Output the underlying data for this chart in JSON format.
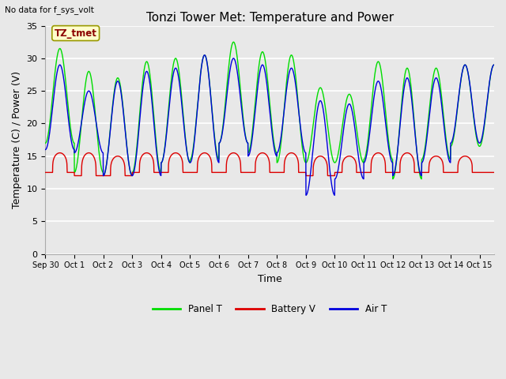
{
  "title": "Tonzi Tower Met: Temperature and Power",
  "top_left_text": "No data for f_sys_volt",
  "annotation_text": "TZ_tmet",
  "xlabel": "Time",
  "ylabel": "Temperature (C) / Power (V)",
  "ylim": [
    0,
    35
  ],
  "yticks": [
    0,
    5,
    10,
    15,
    20,
    25,
    30,
    35
  ],
  "x_tick_positions": [
    0,
    1,
    2,
    3,
    4,
    5,
    6,
    7,
    8,
    9,
    10,
    11,
    12,
    13,
    14,
    15
  ],
  "x_labels": [
    "Sep 30",
    "Oct 1",
    "Oct 2",
    "Oct 3",
    "Oct 4",
    "Oct 5",
    "Oct 6",
    "Oct 7",
    "Oct 8",
    "Oct 9",
    "Oct 10",
    "Oct 11",
    "Oct 12",
    "Oct 13",
    "Oct 14",
    "Oct 15"
  ],
  "legend": [
    {
      "label": "Panel T",
      "color": "#00dd00"
    },
    {
      "label": "Battery V",
      "color": "#dd0000"
    },
    {
      "label": "Air T",
      "color": "#0000dd"
    }
  ],
  "fig_bg_color": "#e8e8e8",
  "plot_bg_color": "#e8e8e8",
  "grid_color": "#ffffff",
  "title_fontsize": 11,
  "axis_label_fontsize": 9,
  "tick_fontsize": 8,
  "panel_peaks": [
    31.5,
    28.0,
    27.0,
    29.5,
    30.0,
    30.5,
    32.5,
    31.0,
    30.5,
    25.5,
    24.5,
    29.5,
    28.5,
    28.5,
    29.0
  ],
  "panel_troughs": [
    17.0,
    12.5,
    12.0,
    12.5,
    14.0,
    14.5,
    17.0,
    15.5,
    14.0,
    14.0,
    14.0,
    14.5,
    11.5,
    14.5,
    16.5
  ],
  "air_peaks": [
    29.0,
    25.0,
    26.5,
    28.0,
    28.5,
    30.5,
    30.0,
    29.0,
    28.5,
    23.5,
    23.0,
    26.5,
    27.0,
    27.0,
    29.0
  ],
  "air_troughs": [
    16.0,
    15.5,
    12.0,
    12.0,
    14.0,
    14.0,
    17.0,
    15.0,
    15.5,
    9.0,
    11.5,
    14.0,
    12.0,
    14.0,
    17.0
  ],
  "batt_peaks": [
    15.5,
    15.5,
    15.0,
    15.5,
    15.5,
    15.5,
    15.5,
    15.5,
    15.5,
    15.0,
    15.0,
    15.5,
    15.5,
    15.0,
    15.0
  ],
  "batt_troughs": [
    12.5,
    12.0,
    12.0,
    12.5,
    12.5,
    12.5,
    12.5,
    12.5,
    12.5,
    12.0,
    12.5,
    12.5,
    12.5,
    12.5,
    12.5
  ],
  "xlim": [
    0,
    15.5
  ],
  "n_points": 3000
}
